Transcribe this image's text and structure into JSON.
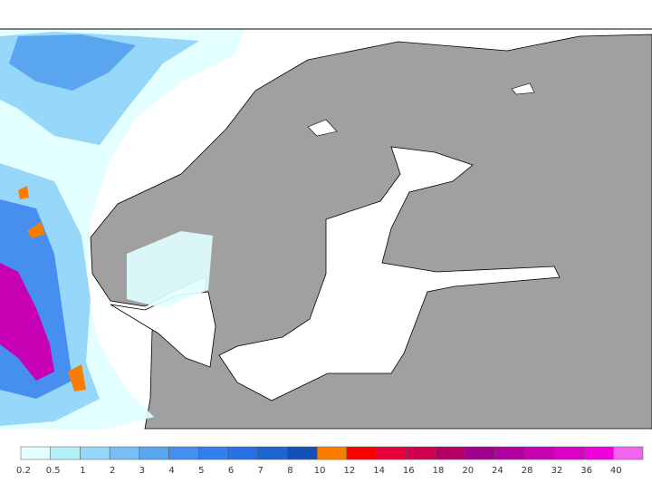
{
  "legend": {
    "levels": [
      0.2,
      0.5,
      1,
      2,
      3,
      4,
      5,
      6,
      7,
      8,
      10,
      12,
      14,
      16,
      18,
      20,
      24,
      28,
      32,
      36,
      40
    ],
    "colors": [
      "#e1ffff",
      "#b4f0f5",
      "#96d7fa",
      "#78bef5",
      "#5aa5f0",
      "#468ff0",
      "#327ff0",
      "#2870e6",
      "#1e64d2",
      "#1450b9",
      "#fa7d00",
      "#fa0000",
      "#e6003c",
      "#d20050",
      "#b40064",
      "#a0008c",
      "#b400a0",
      "#c800b4",
      "#dc00c8",
      "#f000dc",
      "#f064f0"
    ]
  }
}
